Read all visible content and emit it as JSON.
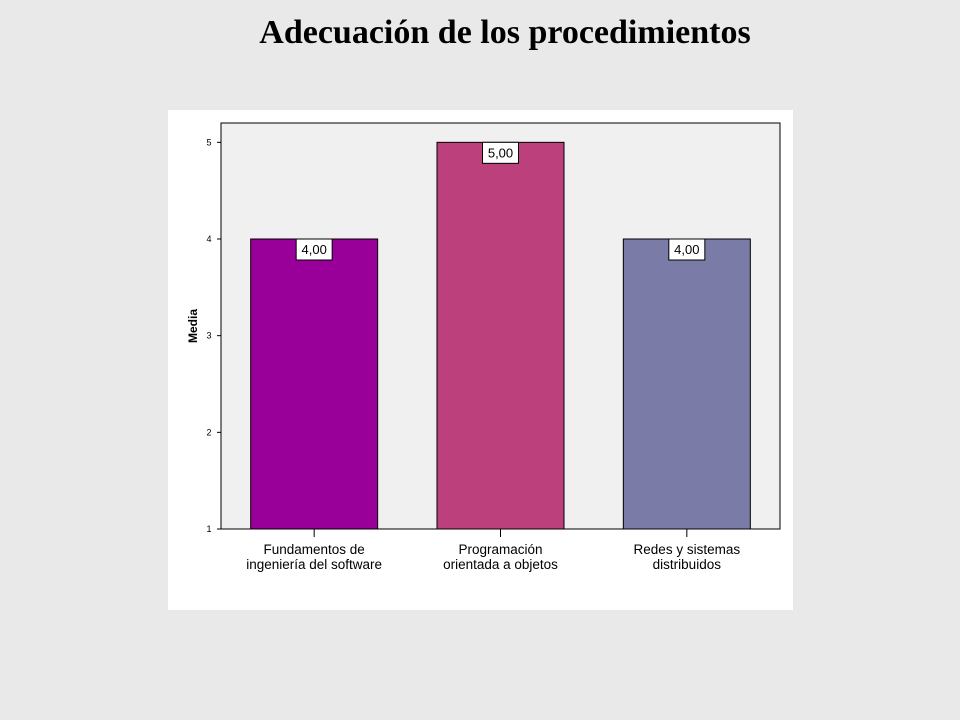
{
  "slide": {
    "title": "Adecuación de los procedimientos"
  },
  "colors": {
    "page_background": "#e9e9e9",
    "plot_background": "#f0f0f0",
    "bar_1": "#990099",
    "bar_2": "#bb407b",
    "bar_3": "#7b7ba8"
  },
  "chart_data": {
    "type": "bar",
    "title": "",
    "xlabel": "",
    "ylabel": "Media",
    "categories": [
      [
        "Fundamentos de",
        "ingeniería del software"
      ],
      [
        "Programación",
        "orientada a objetos"
      ],
      [
        "Redes y sistemas",
        "distribuidos"
      ]
    ],
    "values": [
      4,
      5,
      4
    ],
    "value_labels": [
      "4,00",
      "5,00",
      "4,00"
    ],
    "bar_colors": [
      "#990099",
      "#bb407b",
      "#7b7ba8"
    ],
    "ylim": [
      1,
      5.2
    ],
    "yticks": [
      1,
      2,
      3,
      4,
      5
    ],
    "ytick_labels": [
      "1",
      "2",
      "3",
      "4",
      "5"
    ],
    "grid": false,
    "legend": "none"
  }
}
